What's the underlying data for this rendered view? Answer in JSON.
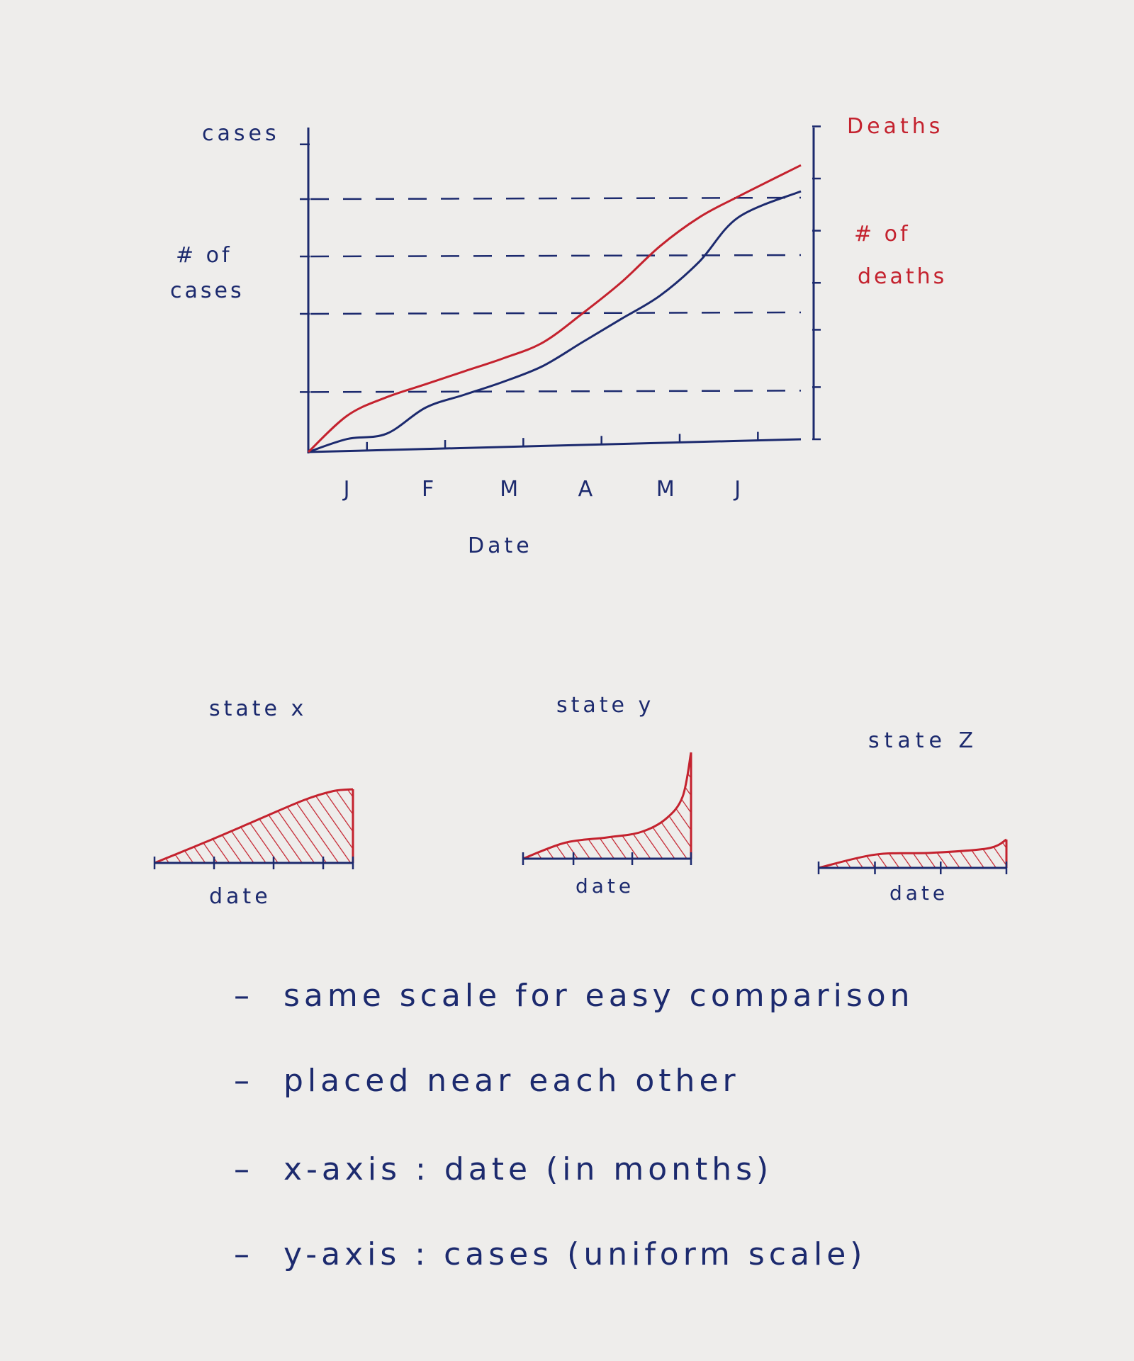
{
  "chart_data": [
    {
      "type": "line",
      "title": "",
      "xlabel": "Date",
      "y_left_label_top": "cases",
      "y_left_label": "# of cases",
      "y_right_label_top": "Deaths",
      "y_right_label": "# of deaths",
      "categories": [
        "J",
        "F",
        "M",
        "A",
        "M",
        "J"
      ],
      "grid": "dashed horizontal",
      "series": [
        {
          "axis": "left",
          "color": "#1c2a6e",
          "x": [
            0,
            0.5,
            1,
            1.5,
            2,
            2.5,
            3,
            3.5,
            4,
            4.5,
            5,
            5.5,
            6.3
          ],
          "values": [
            0,
            0.05,
            0.07,
            0.17,
            0.22,
            0.27,
            0.33,
            0.42,
            0.51,
            0.6,
            0.73,
            0.9,
            1.0
          ]
        },
        {
          "axis": "right",
          "color": "#c4222e",
          "x": [
            0,
            0.5,
            1,
            1.5,
            2,
            2.5,
            3,
            3.5,
            4,
            4.5,
            5,
            5.5,
            6.3
          ],
          "values": [
            0,
            0.14,
            0.21,
            0.26,
            0.31,
            0.36,
            0.42,
            0.53,
            0.65,
            0.79,
            0.9,
            0.98,
            1.1
          ]
        }
      ]
    },
    {
      "type": "area",
      "title": "state x",
      "xlabel": "date",
      "color": "#c4222e",
      "x": [
        0,
        0.25,
        0.5,
        0.75,
        0.9,
        1
      ],
      "values": [
        0,
        0.22,
        0.45,
        0.68,
        0.78,
        0.8
      ]
    },
    {
      "type": "area",
      "title": "state y",
      "xlabel": "date",
      "color": "#c4222e",
      "x": [
        0,
        0.25,
        0.5,
        0.7,
        0.85,
        0.95,
        1
      ],
      "values": [
        0,
        0.18,
        0.24,
        0.3,
        0.45,
        0.7,
        1.2
      ]
    },
    {
      "type": "area",
      "title": "state Z",
      "xlabel": "date",
      "color": "#c4222e",
      "x": [
        0,
        0.3,
        0.6,
        0.9,
        1
      ],
      "values": [
        0,
        0.15,
        0.17,
        0.22,
        0.32
      ]
    }
  ],
  "notes": [
    "same   scale   for  easy  comparison",
    "placed   near   each  other",
    "x-axis :  date    (in months)",
    "y-axis :  cases    (uniform scale)"
  ]
}
